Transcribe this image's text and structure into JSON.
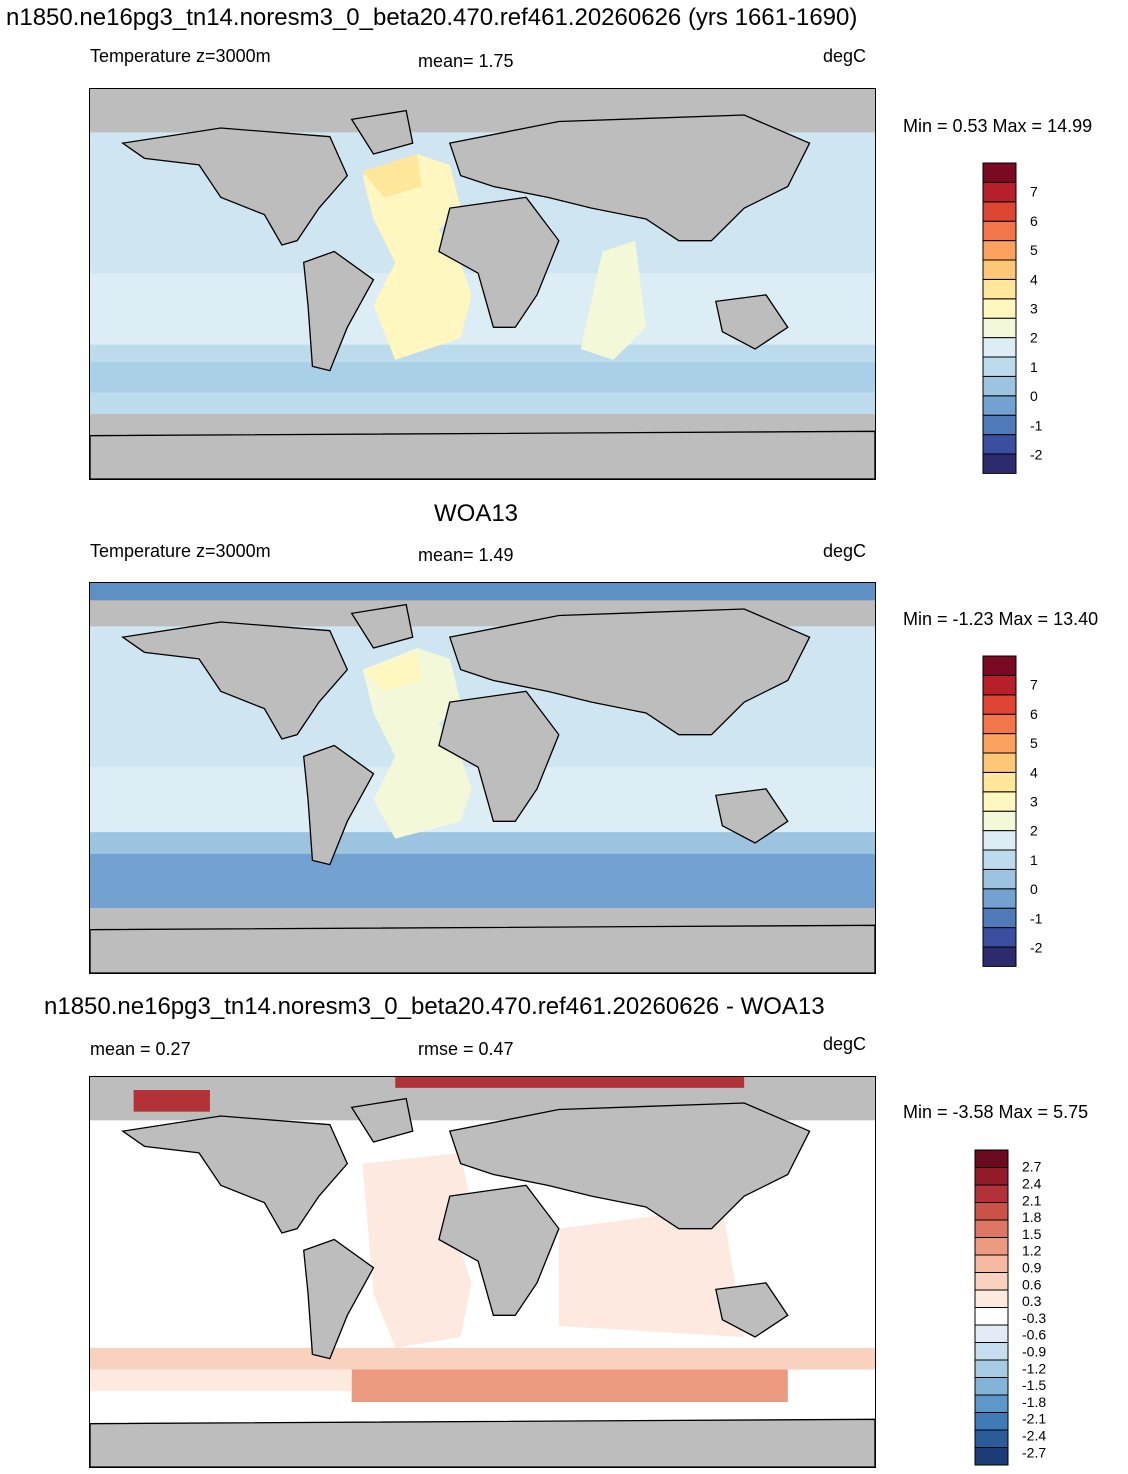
{
  "panel1": {
    "title": "n1850.ne16pg3_tn14.noresm3_0_beta20.470.ref461.20260626 (yrs 1661-1690)",
    "left_label": "Temperature z=3000m",
    "center_label": "mean=   1.75",
    "units": "degC",
    "minmax": "Min =   0.53 Max =  14.99"
  },
  "panel2": {
    "title": "WOA13",
    "left_label": "Temperature z=3000m",
    "center_label": "mean=   1.49",
    "units": "degC",
    "minmax": "Min =  -1.23 Max =  13.40"
  },
  "panel3": {
    "title": "n1850.ne16pg3_tn14.noresm3_0_beta20.470.ref461.20260626 - WOA13",
    "left_label": "mean =   0.27",
    "center_label": "rmse =   0.47",
    "units": "degC",
    "minmax": "Min =  -3.58 Max =   5.75"
  },
  "colorbar_abs": {
    "colors": [
      "#2e2a6e",
      "#3b4fa0",
      "#4f7bb8",
      "#74a2d0",
      "#9cc4e0",
      "#bcdbec",
      "#dcedf5",
      "#f2f8d8",
      "#fff6c0",
      "#fee69a",
      "#fdc778",
      "#fba25e",
      "#f3764a",
      "#df4533",
      "#b81f2a",
      "#7a0a24"
    ],
    "labels": [
      "7",
      "6",
      "5",
      "4",
      "3",
      "2",
      "1",
      "0",
      "-1",
      "-2"
    ]
  },
  "colorbar_diff": {
    "colors": [
      "#1c3c75",
      "#2a5c9a",
      "#3f7bb7",
      "#5e98c9",
      "#82b4d8",
      "#a8cbe4",
      "#c8def0",
      "#e1ecf6",
      "#ffffff",
      "#fde9df",
      "#f9d2bf",
      "#f4b9a0",
      "#eb9a80",
      "#dd7763",
      "#ca5349",
      "#b33238",
      "#931b29",
      "#6a0b1f"
    ],
    "labels": [
      "2.7",
      "2.4",
      "2.1",
      "1.8",
      "1.5",
      "1.2",
      "0.9",
      "0.6",
      "0.3",
      "-0.3",
      "-0.6",
      "-0.9",
      "-1.2",
      "-1.5",
      "-1.8",
      "-2.1",
      "-2.4",
      "-2.7"
    ]
  },
  "colors": {
    "land": "#bdbdbd",
    "coast": "#000000"
  }
}
